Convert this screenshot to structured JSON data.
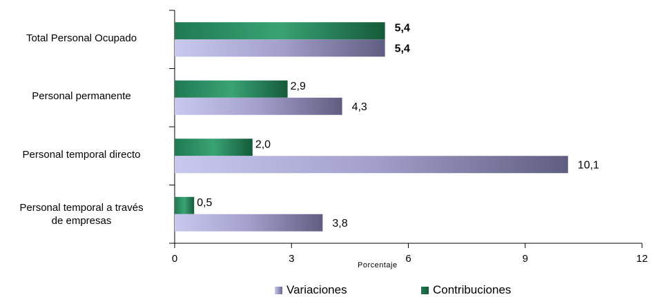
{
  "chart_data": {
    "type": "bar",
    "orientation": "horizontal",
    "categories": [
      "Total Personal Ocupado",
      "Personal permanente",
      "Personal temporal directo",
      "Personal temporal a través de empresas"
    ],
    "category_lines": [
      [
        "Total Personal Ocupado"
      ],
      [
        "Personal permanente"
      ],
      [
        "Personal temporal directo"
      ],
      [
        "Personal temporal a través",
        "de empresas"
      ]
    ],
    "series": [
      {
        "name": "Contribuciones",
        "values": [
          5.4,
          2.9,
          2.0,
          0.5
        ],
        "labels": [
          "5,4",
          "2,9",
          "2,0",
          "0,5"
        ],
        "color": "#2e8b5f"
      },
      {
        "name": "Variaciones",
        "values": [
          5.4,
          4.3,
          10.1,
          3.8
        ],
        "labels": [
          "5,4",
          "4,3",
          "10,1",
          "3,8"
        ],
        "color": "#8a88b0"
      }
    ],
    "xlabel": "Porcentaje",
    "xlim": [
      0,
      12
    ],
    "xticks": [
      0,
      3,
      6,
      9,
      12
    ],
    "bold_first_category_labels": true,
    "legend": {
      "position": "bottom",
      "order": [
        "Variaciones",
        "Contribuciones"
      ]
    },
    "grid": false
  }
}
